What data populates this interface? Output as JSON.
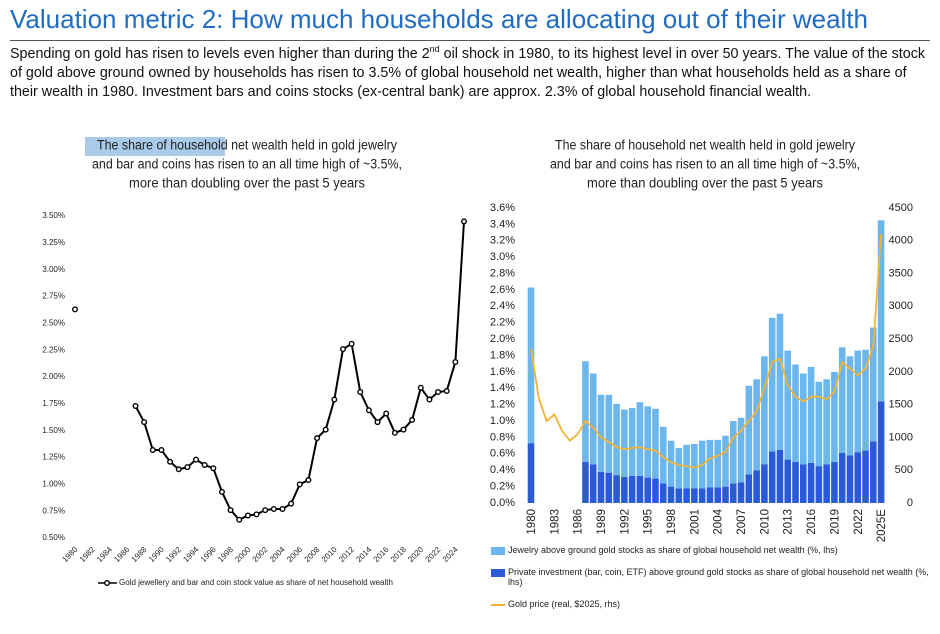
{
  "header": {
    "title": "Valuation metric 2: How much households are allocating out of their wealth",
    "body": [
      "Spending on gold has risen to levels even higher than during the 2",
      "nd",
      " oil shock in 1980, to its highest level in over 50 years. The value of the stock of gold above ground owned by households has risen to 3.5% of global household net wealth, higher than what households held as a share of their wealth in 1980. Investment bars and coins stocks (ex-central bank) are approx. 2.3% of global household financial wealth."
    ]
  },
  "chart_data": [
    {
      "type": "line",
      "title": [
        "The share of household net wealth held in gold jewelry",
        "and bar and coins has risen to an all time high of ~3.5%,",
        "more than doubling over the past 5 years"
      ],
      "x": [
        1980,
        1981,
        1982,
        1983,
        1984,
        1985,
        1986,
        1987,
        1988,
        1989,
        1990,
        1991,
        1992,
        1993,
        1994,
        1995,
        1996,
        1997,
        1998,
        1999,
        2000,
        2001,
        2002,
        2003,
        2004,
        2005,
        2006,
        2007,
        2008,
        2009,
        2010,
        2011,
        2012,
        2013,
        2014,
        2015,
        2016,
        2017,
        2018,
        2019,
        2020,
        2021,
        2022,
        2023,
        2024,
        2025
      ],
      "xlim": [
        1980,
        2025
      ],
      "xticks": [
        1980,
        1982,
        1984,
        1986,
        1988,
        1990,
        1992,
        1994,
        1996,
        1998,
        2000,
        2002,
        2004,
        2006,
        2008,
        2010,
        2012,
        2014,
        2016,
        2018,
        2020,
        2022,
        2024
      ],
      "ylim": [
        0.5,
        3.5
      ],
      "yticks": [
        {
          "value": 0.5,
          "label": "0.50%"
        },
        {
          "value": 0.75,
          "label": "0.75%"
        },
        {
          "value": 1.0,
          "label": "1.00%"
        },
        {
          "value": 1.25,
          "label": "1.25%"
        },
        {
          "value": 1.5,
          "label": "1.50%"
        },
        {
          "value": 1.75,
          "label": "1.75%"
        },
        {
          "value": 2.0,
          "label": "2.00%"
        },
        {
          "value": 2.25,
          "label": "2.25%"
        },
        {
          "value": 2.5,
          "label": "2.50%"
        },
        {
          "value": 2.75,
          "label": "2.75%"
        },
        {
          "value": 3.0,
          "label": "3.00%"
        },
        {
          "value": 3.25,
          "label": "3.25%"
        },
        {
          "value": 3.5,
          "label": "3.50%"
        }
      ],
      "legend": "bottom",
      "series": [
        {
          "name": "Gold jewellery and bar and coin stock value as share of net household wealth",
          "color": "#000000",
          "values": [
            2.63,
            null,
            null,
            null,
            null,
            null,
            null,
            1.73,
            1.58,
            1.32,
            1.32,
            1.21,
            1.14,
            1.16,
            1.23,
            1.18,
            1.15,
            0.93,
            0.76,
            0.67,
            0.71,
            0.72,
            0.76,
            0.77,
            0.77,
            0.82,
            1.0,
            1.04,
            1.43,
            1.51,
            1.79,
            2.26,
            2.31,
            1.86,
            1.69,
            1.58,
            1.66,
            1.48,
            1.51,
            1.6,
            1.9,
            1.79,
            1.86,
            1.87,
            2.14,
            3.45
          ]
        }
      ]
    },
    {
      "type": "bar",
      "stacked": true,
      "title": [
        "The share of household net wealth held in gold jewelry",
        "and bar and coins has risen to an all time high of ~3.5%,",
        "more than doubling over the past 5 years"
      ],
      "categories": [
        "1980",
        null,
        null,
        "1983",
        null,
        null,
        "1986",
        null,
        null,
        "1989",
        null,
        null,
        "1992",
        null,
        null,
        "1995",
        null,
        null,
        "1998",
        null,
        null,
        "2001",
        null,
        null,
        "2004",
        null,
        null,
        "2007",
        null,
        null,
        "2010",
        null,
        null,
        "2013",
        null,
        null,
        "2016",
        null,
        null,
        "2019",
        null,
        null,
        "2022",
        null,
        null,
        "2025E"
      ],
      "ylim": [
        0,
        3.6
      ],
      "yticks": [
        {
          "value": 0,
          "label": "0.0%"
        },
        {
          "value": 0.2,
          "label": "0.2%"
        },
        {
          "value": 0.4,
          "label": "0.4%"
        },
        {
          "value": 0.6,
          "label": "0.6%"
        },
        {
          "value": 0.8,
          "label": "0.8%"
        },
        {
          "value": 1.0,
          "label": "1.0%"
        },
        {
          "value": 1.2,
          "label": "1.2%"
        },
        {
          "value": 1.4,
          "label": "1.4%"
        },
        {
          "value": 1.6,
          "label": "1.6%"
        },
        {
          "value": 1.8,
          "label": "1.8%"
        },
        {
          "value": 2.0,
          "label": "2.0%"
        },
        {
          "value": 2.2,
          "label": "2.2%"
        },
        {
          "value": 2.4,
          "label": "2.4%"
        },
        {
          "value": 2.6,
          "label": "2.6%"
        },
        {
          "value": 2.8,
          "label": "2.8%"
        },
        {
          "value": 3.0,
          "label": "3.0%"
        },
        {
          "value": 3.2,
          "label": "3.2%"
        },
        {
          "value": 3.4,
          "label": "3.4%"
        },
        {
          "value": 3.6,
          "label": "3.6%"
        }
      ],
      "y2lim": [
        0,
        4500
      ],
      "y2ticks": [
        0,
        500,
        1000,
        1500,
        2000,
        2500,
        3000,
        3500,
        4000,
        4500
      ],
      "legend": "bottom",
      "series": [
        {
          "name": "Jewelry above ground gold stocks as share of global household net wealth (%, lhs)",
          "color": "#6cb6ee",
          "values": [
            1.9,
            null,
            null,
            null,
            null,
            null,
            null,
            1.23,
            1.11,
            0.94,
            0.95,
            0.87,
            0.82,
            0.83,
            0.9,
            0.87,
            0.85,
            0.69,
            0.56,
            0.49,
            0.53,
            0.54,
            0.58,
            0.58,
            0.58,
            0.62,
            0.76,
            0.79,
            1.08,
            1.11,
            1.32,
            1.63,
            1.66,
            1.33,
            1.19,
            1.11,
            1.17,
            1.03,
            1.04,
            1.1,
            1.29,
            1.21,
            1.24,
            1.23,
            1.39,
            2.21
          ]
        },
        {
          "name": "Private investment (bar, coin, ETF) above ground gold stocks as share of global household net wealth (%, lhs)",
          "color": "#2b5ad6",
          "values": [
            0.73,
            null,
            null,
            null,
            null,
            null,
            null,
            0.5,
            0.47,
            0.38,
            0.37,
            0.34,
            0.32,
            0.33,
            0.33,
            0.31,
            0.3,
            0.24,
            0.2,
            0.18,
            0.18,
            0.18,
            0.18,
            0.19,
            0.19,
            0.2,
            0.24,
            0.25,
            0.35,
            0.4,
            0.47,
            0.63,
            0.65,
            0.53,
            0.5,
            0.47,
            0.49,
            0.45,
            0.47,
            0.5,
            0.61,
            0.58,
            0.62,
            0.64,
            0.75,
            1.24
          ]
        },
        {
          "name": "Gold price (real, $2025, rhs)",
          "color": "#f5b335",
          "type": "line",
          "axis": "y2",
          "values": [
            2350,
            1600,
            1250,
            1350,
            1100,
            950,
            1050,
            1250,
            1150,
            1000,
            930,
            850,
            820,
            840,
            850,
            820,
            800,
            700,
            620,
            580,
            560,
            540,
            580,
            680,
            720,
            780,
            1000,
            1100,
            1250,
            1400,
            1750,
            2150,
            2200,
            1800,
            1620,
            1550,
            1620,
            1620,
            1580,
            1700,
            2150,
            2050,
            1950,
            2050,
            2400,
            4100
          ]
        }
      ]
    }
  ]
}
